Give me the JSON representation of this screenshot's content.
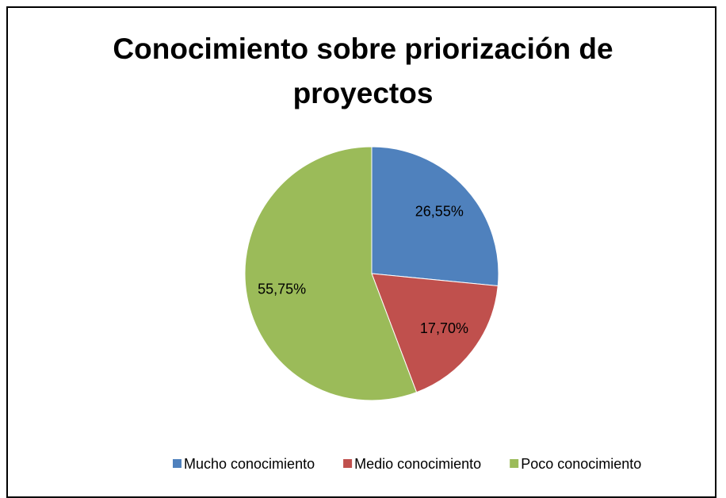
{
  "chart_data": {
    "type": "pie",
    "title": "Conocimiento sobre priorización de proyectos",
    "categories": [
      "Mucho conocimiento",
      "Medio conocimiento",
      "Poco conocimiento"
    ],
    "values": [
      26.55,
      17.7,
      55.75
    ],
    "value_labels": [
      "26,55%",
      "17,70%",
      "55,75%"
    ],
    "colors": [
      "#4f81bd",
      "#c0504d",
      "#9bbb59"
    ],
    "legend": "bottom"
  }
}
